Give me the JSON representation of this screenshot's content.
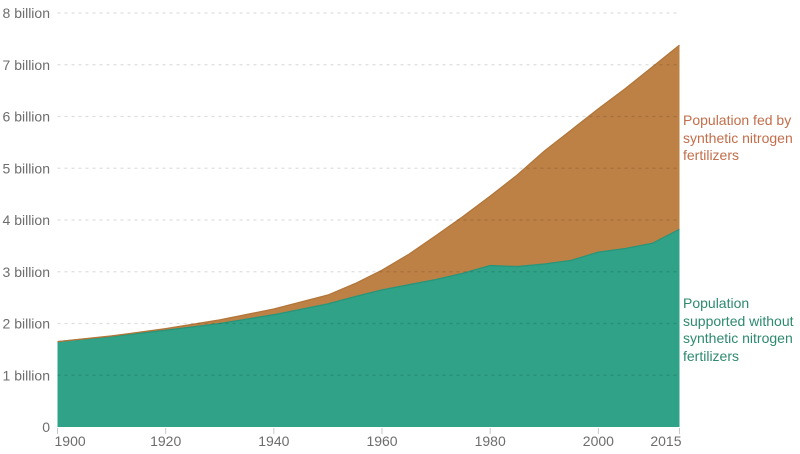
{
  "chart_data": {
    "type": "area",
    "stacked": true,
    "title": "",
    "xlabel": "",
    "ylabel": "",
    "grid": "horizontal-dashed",
    "legend_position": "right-annotations",
    "x": [
      1900,
      1910,
      1920,
      1930,
      1940,
      1950,
      1955,
      1960,
      1965,
      1970,
      1975,
      1980,
      1985,
      1990,
      1995,
      2000,
      2005,
      2010,
      2015
    ],
    "series": [
      {
        "name": "Population supported without synthetic nitrogen fertilizers",
        "color": "#2fa287",
        "edge_color": "#27957b",
        "values": [
          1.65,
          1.75,
          1.87,
          2.0,
          2.17,
          2.38,
          2.52,
          2.65,
          2.75,
          2.85,
          2.97,
          3.12,
          3.1,
          3.15,
          3.22,
          3.38,
          3.45,
          3.55,
          3.82
        ]
      },
      {
        "name": "Population fed by synthetic nitrogen fertilizers",
        "color": "#bd8145",
        "edge_color": "#b2763a",
        "values": [
          0.0,
          0.01,
          0.03,
          0.07,
          0.11,
          0.17,
          0.25,
          0.38,
          0.59,
          0.85,
          1.1,
          1.34,
          1.77,
          2.18,
          2.52,
          2.77,
          3.09,
          3.41,
          3.56
        ]
      }
    ],
    "totals": [
      1.65,
      1.76,
      1.9,
      2.07,
      2.28,
      2.55,
      2.77,
      3.03,
      3.34,
      3.7,
      4.07,
      4.46,
      4.87,
      5.33,
      5.74,
      6.15,
      6.54,
      6.96,
      7.38
    ],
    "xlim": [
      1900,
      2015
    ],
    "ylim": [
      0,
      8
    ],
    "yticks": {
      "values": [
        0,
        1,
        2,
        3,
        4,
        5,
        6,
        7,
        8
      ],
      "labels": [
        "0",
        "1 billion",
        "2 billion",
        "3 billion",
        "4 billion",
        "5 billion",
        "6 billion",
        "7 billion",
        "8 billion"
      ]
    },
    "xticks": {
      "values": [
        1900,
        1920,
        1940,
        1960,
        1980,
        2000,
        2015
      ],
      "labels": [
        "1900",
        "1920",
        "1940",
        "1960",
        "1980",
        "2000",
        "2015"
      ]
    }
  },
  "annotations": {
    "fed": {
      "text": "Population fed by synthetic nitrogen fertilizers",
      "color": "#c26e4a"
    },
    "without": {
      "text": "Population supported without synthetic nitrogen fertilizers",
      "color": "#2d8a6e"
    }
  },
  "axis_style": {
    "tick_label_color": "#6d6d6d",
    "gridline_color": "rgba(0,0,0,0.13)",
    "tick_mark_color": "#c8c8c8"
  }
}
